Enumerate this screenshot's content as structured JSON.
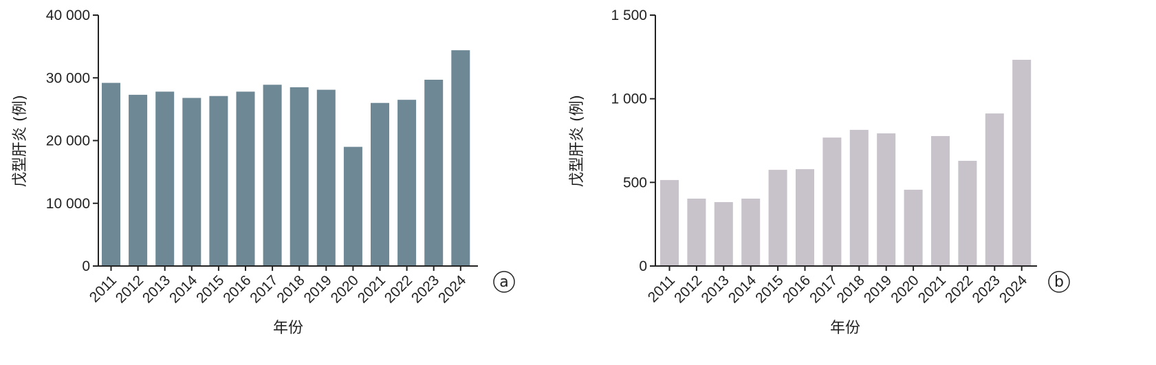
{
  "chart_data": [
    {
      "type": "bar",
      "panel_label": "a",
      "categories": [
        "2011",
        "2012",
        "2013",
        "2014",
        "2015",
        "2016",
        "2017",
        "2018",
        "2019",
        "2020",
        "2021",
        "2022",
        "2023",
        "2024"
      ],
      "values": [
        29200,
        27300,
        27800,
        26800,
        27100,
        27800,
        28900,
        28500,
        28100,
        19000,
        26000,
        26500,
        29700,
        34400
      ],
      "xlabel": "年份",
      "ylabel": "戊型肝炎 (例)",
      "ylim": [
        0,
        40000
      ],
      "yticks": [
        0,
        10000,
        20000,
        30000,
        40000
      ],
      "ytick_labels": [
        "0",
        "10 000",
        "20 000",
        "30 000",
        "40 000"
      ],
      "color": "#6e8896",
      "grid": false
    },
    {
      "type": "bar",
      "panel_label": "b",
      "categories": [
        "2011",
        "2012",
        "2013",
        "2014",
        "2015",
        "2016",
        "2017",
        "2018",
        "2019",
        "2020",
        "2021",
        "2022",
        "2023",
        "2024"
      ],
      "values": [
        514,
        403,
        382,
        403,
        575,
        579,
        768,
        814,
        793,
        456,
        777,
        629,
        912,
        1233
      ],
      "xlabel": "年份",
      "ylabel": "戊型肝炎 (例)",
      "ylim": [
        0,
        1500
      ],
      "yticks": [
        0,
        500,
        1000,
        1500
      ],
      "ytick_labels": [
        "0",
        "500",
        "1 000",
        "1 500"
      ],
      "color": "#c8c2cb",
      "grid": false
    }
  ]
}
